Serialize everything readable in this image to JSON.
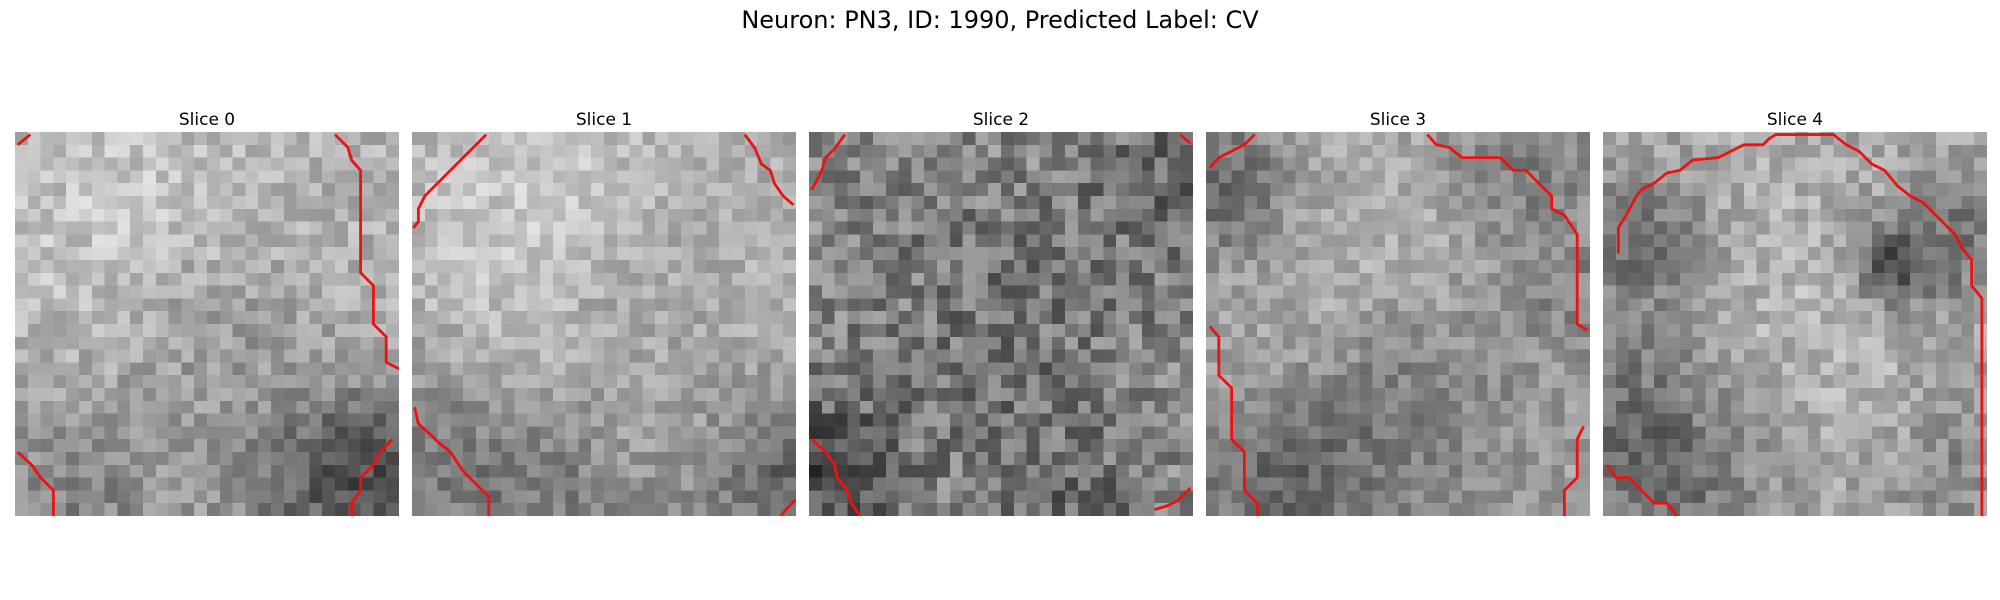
{
  "figure": {
    "suptitle": "Neuron: PN3, ID: 1990, Predicted Label: CV"
  },
  "panels": [
    {
      "title": "Slice 0"
    },
    {
      "title": "Slice 1"
    },
    {
      "title": "Slice 2"
    },
    {
      "title": "Slice 3"
    },
    {
      "title": "Slice 4"
    }
  ],
  "colors": {
    "contour": "#ee1111",
    "colormap": "gray"
  }
}
